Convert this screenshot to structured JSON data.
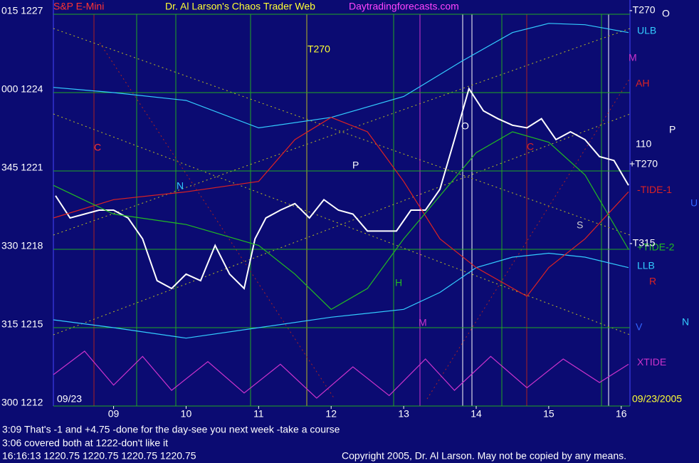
{
  "chart_data": {
    "type": "line",
    "title_parts": [
      "S&P E-Mini",
      "Dr. Al Larson's Chaos Trader Web",
      "Daytradingforecasts.com"
    ],
    "xlim": [
      8.17,
      16.12
    ],
    "xticks": [
      {
        "value": 9,
        "label": "09"
      },
      10,
      11,
      12,
      13,
      14,
      15,
      16
    ],
    "ylim": [
      1212,
      1227
    ],
    "yticks": [
      {
        "value": 1227,
        "label": "015 1227"
      },
      {
        "value": 1224,
        "label": "000 1224"
      },
      {
        "value": 1221,
        "label": "345 1221"
      },
      {
        "value": 1218,
        "label": "330 1218"
      },
      {
        "value": 1215,
        "label": "315 1215"
      },
      {
        "value": 1212,
        "label": "300 1212"
      }
    ],
    "grid": true,
    "series": [
      {
        "color": "#ffffff",
        "x": [
          8.2,
          8.4,
          8.6,
          8.8,
          9.0,
          9.2,
          9.4,
          9.6,
          9.8,
          10.0,
          10.2,
          10.4,
          10.6,
          10.8,
          10.95,
          11.1,
          11.3,
          11.5,
          11.7,
          11.9,
          12.1,
          12.3,
          12.5,
          12.7,
          12.9,
          13.1,
          13.3,
          13.5,
          13.7,
          13.9,
          14.1,
          14.3,
          14.5,
          14.7,
          14.9,
          15.1,
          15.3,
          15.5,
          15.7,
          15.9,
          16.1
        ],
        "values": [
          1220.05,
          1219.2,
          1219.35,
          1219.5,
          1219.5,
          1219.2,
          1218.4,
          1216.8,
          1216.5,
          1217.05,
          1216.8,
          1218.15,
          1217.05,
          1216.5,
          1218.4,
          1219.2,
          1219.5,
          1219.75,
          1219.2,
          1219.9,
          1219.5,
          1219.35,
          1218.7,
          1218.7,
          1218.7,
          1219.5,
          1219.5,
          1220.3,
          1222.2,
          1224.15,
          1223.3,
          1223.0,
          1222.75,
          1222.65,
          1223.0,
          1222.2,
          1222.5,
          1222.2,
          1221.55,
          1221.4,
          1220.45
        ]
      },
      {
        "name": "ULB",
        "color": "#33ccff",
        "x": [
          8.17,
          9,
          10,
          11,
          12,
          13,
          13.8,
          14.5,
          15,
          15.5,
          16.1
        ],
        "values": [
          1224.2,
          1224.0,
          1223.7,
          1222.65,
          1223.05,
          1223.85,
          1225.2,
          1226.3,
          1226.65,
          1226.6,
          1226.3
        ]
      },
      {
        "name": "LLB",
        "color": "#33ccff",
        "x": [
          8.17,
          9,
          10,
          11,
          12,
          13,
          13.5,
          14,
          14.5,
          15,
          15.5,
          16.1
        ],
        "values": [
          1215.3,
          1215.0,
          1214.6,
          1215.0,
          1215.4,
          1215.7,
          1216.35,
          1217.3,
          1217.7,
          1217.85,
          1217.7,
          1217.3
        ]
      },
      {
        "name": "-TIDE-1",
        "color": "#dd2222",
        "x": [
          8.17,
          9,
          10,
          11,
          11.5,
          12,
          12.5,
          13,
          13.5,
          14,
          14.7,
          15,
          15.5,
          16.1
        ],
        "values": [
          1219.2,
          1219.9,
          1220.2,
          1220.6,
          1222.2,
          1223.05,
          1222.5,
          1220.6,
          1218.4,
          1217.3,
          1216.2,
          1217.3,
          1218.4,
          1220.2
        ]
      },
      {
        "name": "+TIDE-2",
        "color": "#22bb22",
        "x": [
          8.17,
          9,
          10,
          11,
          11.5,
          12,
          12.5,
          13,
          13.5,
          14,
          14.5,
          15,
          15.5,
          16.1
        ],
        "values": [
          1220.45,
          1219.35,
          1218.95,
          1218.15,
          1217.05,
          1215.7,
          1216.5,
          1218.4,
          1220.05,
          1221.7,
          1222.5,
          1222.1,
          1220.85,
          1218.0
        ]
      },
      {
        "name": "XTIDE",
        "color": "#cc33cc",
        "x": [
          8.17,
          8.6,
          9.0,
          9.4,
          9.8,
          10.3,
          10.8,
          11.3,
          11.8,
          12.3,
          12.8,
          13.3,
          13.7,
          14.2,
          14.7,
          15.2,
          15.7,
          16.1
        ],
        "values": [
          1213.2,
          1214.1,
          1212.8,
          1213.9,
          1212.6,
          1213.7,
          1212.5,
          1213.6,
          1212.3,
          1213.5,
          1212.4,
          1213.8,
          1212.6,
          1213.9,
          1212.7,
          1213.8,
          1212.9,
          1213.6
        ]
      }
    ],
    "annotations": [
      "T270",
      "P",
      "N",
      "C",
      "O",
      "H",
      "M",
      "S",
      "R",
      "U",
      "V",
      "N",
      "M",
      "AH",
      "P",
      "O",
      "110",
      "+T270",
      "-T315",
      "-T270",
      "09/23",
      "09/23/2005",
      "C"
    ],
    "notes": [
      "3:09 That's -1 and +4.75 -done for the day-see you next week -take a course",
      "3:06 covered both at 1222-don't like it",
      "16:16:13  1220.75 1220.75 1220.75 1220.75"
    ],
    "copyright": "Copyright 2005, Dr. Al Larson. May not be copied by any means."
  }
}
